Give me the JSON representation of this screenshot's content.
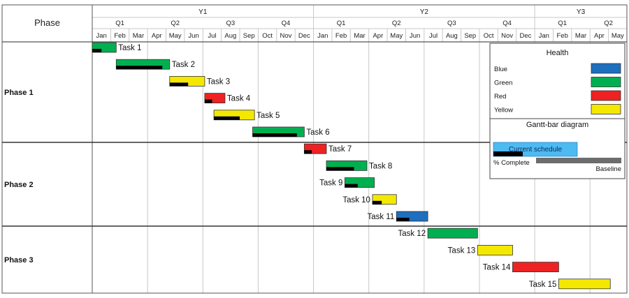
{
  "chart_data": {
    "type": "gantt",
    "header": {
      "phase_label": "Phase",
      "years": [
        {
          "label": "Y1",
          "start": 0,
          "end": 12
        },
        {
          "label": "Y2",
          "start": 12,
          "end": 24
        },
        {
          "label": "Y3",
          "start": 24,
          "end": 29
        }
      ],
      "quarters": [
        {
          "label": "Q1",
          "start": 0,
          "end": 3
        },
        {
          "label": "Q2",
          "start": 3,
          "end": 6
        },
        {
          "label": "Q3",
          "start": 6,
          "end": 9
        },
        {
          "label": "Q4",
          "start": 9,
          "end": 12
        },
        {
          "label": "Q1",
          "start": 12,
          "end": 15
        },
        {
          "label": "Q2",
          "start": 15,
          "end": 18
        },
        {
          "label": "Q3",
          "start": 18,
          "end": 21
        },
        {
          "label": "Q4",
          "start": 21,
          "end": 24
        },
        {
          "label": "Q1",
          "start": 24,
          "end": 27
        },
        {
          "label": "Q2",
          "start": 27,
          "end": 29
        }
      ],
      "months": [
        "Jan",
        "Feb",
        "Mar",
        "Apr",
        "May",
        "Jun",
        "Jul",
        "Aug",
        "Sep",
        "Oct",
        "Nov",
        "Dec",
        "Jan",
        "Feb",
        "Mar",
        "Apr",
        "May",
        "Jun",
        "Jul",
        "Aug",
        "Sep",
        "Oct",
        "Nov",
        "Dec",
        "Jan",
        "Feb",
        "Mar",
        "Apr",
        "May"
      ]
    },
    "phases": [
      {
        "label": "Phase 1",
        "task_range": [
          0,
          5
        ]
      },
      {
        "label": "Phase 2",
        "task_range": [
          6,
          10
        ]
      },
      {
        "label": "Phase 3",
        "task_range": [
          11,
          14
        ]
      }
    ],
    "tasks": [
      {
        "name": "Task 1",
        "start": 0.0,
        "end": 1.3,
        "complete_end": 0.5,
        "health": "Green",
        "label_side": "right"
      },
      {
        "name": "Task 2",
        "start": 1.3,
        "end": 4.2,
        "complete_end": 3.8,
        "health": "Green",
        "label_side": "right"
      },
      {
        "name": "Task 3",
        "start": 4.2,
        "end": 6.1,
        "complete_end": 5.2,
        "health": "Yellow",
        "label_side": "right"
      },
      {
        "name": "Task 4",
        "start": 6.1,
        "end": 7.2,
        "complete_end": 6.5,
        "health": "Red",
        "label_side": "right"
      },
      {
        "name": "Task 5",
        "start": 6.6,
        "end": 8.8,
        "complete_end": 8.0,
        "health": "Yellow",
        "label_side": "right"
      },
      {
        "name": "Task 6",
        "start": 8.7,
        "end": 11.5,
        "complete_end": 11.1,
        "health": "Green",
        "label_side": "right"
      },
      {
        "name": "Task 7",
        "start": 11.5,
        "end": 12.7,
        "complete_end": 11.9,
        "health": "Red",
        "label_side": "right"
      },
      {
        "name": "Task 8",
        "start": 12.7,
        "end": 14.9,
        "complete_end": 14.2,
        "health": "Green",
        "label_side": "right"
      },
      {
        "name": "Task 9",
        "start": 13.7,
        "end": 15.3,
        "complete_end": 14.4,
        "health": "Green",
        "label_side": "left"
      },
      {
        "name": "Task 10",
        "start": 15.2,
        "end": 16.5,
        "complete_end": 15.7,
        "health": "Yellow",
        "label_side": "left"
      },
      {
        "name": "Task 11",
        "start": 16.5,
        "end": 18.2,
        "complete_end": 17.2,
        "health": "Blue",
        "label_side": "left"
      },
      {
        "name": "Task 12",
        "start": 18.2,
        "end": 20.9,
        "complete_end": null,
        "health": "Green",
        "label_side": "left"
      },
      {
        "name": "Task 13",
        "start": 20.9,
        "end": 22.8,
        "complete_end": null,
        "health": "Yellow",
        "label_side": "left"
      },
      {
        "name": "Task 14",
        "start": 22.8,
        "end": 25.3,
        "complete_end": null,
        "health": "Red",
        "label_side": "left"
      },
      {
        "name": "Task 15",
        "start": 25.3,
        "end": 28.1,
        "complete_end": null,
        "health": "Yellow",
        "label_side": "left"
      }
    ],
    "legend": {
      "health_title": "Health",
      "health_items": [
        {
          "label": "Blue",
          "color": "#1e6fbd"
        },
        {
          "label": "Green",
          "color": "#00b050"
        },
        {
          "label": "Red",
          "color": "#ee2222"
        },
        {
          "label": "Yellow",
          "color": "#f4e800"
        }
      ],
      "diagram_title": "Gantt-bar diagram",
      "current_schedule_label": "Current schedule",
      "current_schedule_color": "#4dbaf2",
      "complete_label": "% Complete",
      "baseline_label": "Baseline",
      "baseline_color": "#6d6d6d",
      "complete_color": "#000000"
    }
  }
}
